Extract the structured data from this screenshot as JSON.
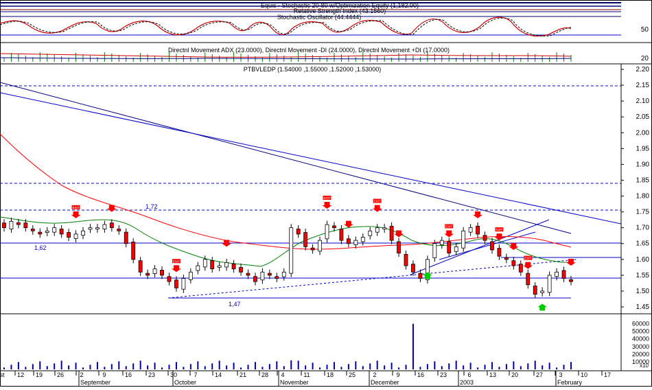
{
  "panels": {
    "equity_title": "Equis - Stochastic 20-80 w/Optimization Equity (1,182.00)",
    "rsi_title": "Relative Strength Index (43.1560)",
    "stoch_title": "Stochastic Oscillator (44.4444)",
    "dmi_title": "Directnl Movement ADX (23.0000), Directnl Movement -DI (24.0000), Directnl Movement +DI (17.0000)",
    "price_title": "PTBVLEDP (1.54000 ,1.55000 ,1.52000 ,1.53000)"
  },
  "axis": {
    "stoch_ticks": [
      "50"
    ],
    "dmi_ticks": [
      "20"
    ],
    "price_ticks": [
      "2.20",
      "2.15",
      "2.10",
      "2.05",
      "2.00",
      "1.95",
      "1.90",
      "1.85",
      "1.80",
      "1.75",
      "1.70",
      "1.65",
      "1.60",
      "1.55",
      "1.50",
      "1.45"
    ],
    "volume_ticks": [
      "60000",
      "50000",
      "40000",
      "30000",
      "20000",
      "10000"
    ],
    "volume_unit": "x10",
    "day_ticks": [
      "st",
      "12",
      "19",
      "26",
      "2",
      "9",
      "16",
      "23",
      "30",
      "7",
      "14",
      "21",
      "28",
      "4",
      "11",
      "18",
      "25",
      "2",
      "9",
      "16",
      "23",
      "6",
      "13",
      "20",
      "27",
      "3",
      "10",
      "17"
    ],
    "month_labels": [
      "September",
      "October",
      "November",
      "December",
      "2003",
      "February"
    ]
  },
  "annotations": {
    "level_172": "1.72",
    "level_162": "1,62",
    "level_147": "1,47",
    "exit_tag": "EXIT"
  },
  "colors": {
    "price_line": "#0000cc",
    "ma_red": "#ff0000",
    "ma_green": "#008000",
    "up_candle": "#ffffff",
    "down_candle": "#ff0000",
    "signal_buy": "#00cc00",
    "signal_sell": "#ff0000",
    "volume": "#0000aa"
  },
  "chart_data": {
    "type": "candlestick",
    "title": "PTBVLEDP (1.54000 ,1.55000 ,1.52000 ,1.53000)",
    "ylim": [
      1.43,
      2.22
    ],
    "x": [
      "st",
      "12",
      "19",
      "26",
      "2",
      "9",
      "16",
      "23",
      "30",
      "7",
      "14",
      "21",
      "28",
      "4",
      "11",
      "18",
      "25",
      "2",
      "9",
      "16",
      "23",
      "6",
      "13",
      "20",
      "27",
      "3",
      "10",
      "17"
    ],
    "last_bar": {
      "open": 1.54,
      "high": 1.55,
      "low": 1.52,
      "close": 1.53
    },
    "close_series": [
      1.7,
      1.72,
      1.71,
      1.7,
      1.69,
      1.68,
      1.69,
      1.7,
      1.68,
      1.67,
      1.68,
      1.69,
      1.7,
      1.7,
      1.71,
      1.7,
      1.69,
      1.65,
      1.6,
      1.56,
      1.55,
      1.57,
      1.55,
      1.53,
      1.51,
      1.54,
      1.56,
      1.58,
      1.6,
      1.57,
      1.58,
      1.59,
      1.57,
      1.56,
      1.55,
      1.53,
      1.56,
      1.55,
      1.54,
      1.56,
      1.7,
      1.68,
      1.64,
      1.63,
      1.66,
      1.71,
      1.7,
      1.66,
      1.65,
      1.66,
      1.67,
      1.69,
      1.7,
      1.7,
      1.66,
      1.62,
      1.58,
      1.56,
      1.54,
      1.6,
      1.65,
      1.66,
      1.62,
      1.64,
      1.69,
      1.7,
      1.68,
      1.66,
      1.63,
      1.61,
      1.6,
      1.58,
      1.56,
      1.52,
      1.49,
      1.5,
      1.55,
      1.56,
      1.54,
      1.53
    ],
    "horizontal_levels": [
      1.72,
      1.62,
      1.58,
      1.53,
      1.47,
      1.8,
      2.13
    ],
    "level_labels": [
      "1.72",
      "1,62",
      "1,47"
    ],
    "sell_signals": 14,
    "buy_signals": 2,
    "volume_spike_max": 60000,
    "stochastic_last": 44.4444,
    "rsi_last": 43.156,
    "adx_last": 23.0,
    "minus_di_last": 24.0,
    "plus_di_last": 17.0
  }
}
